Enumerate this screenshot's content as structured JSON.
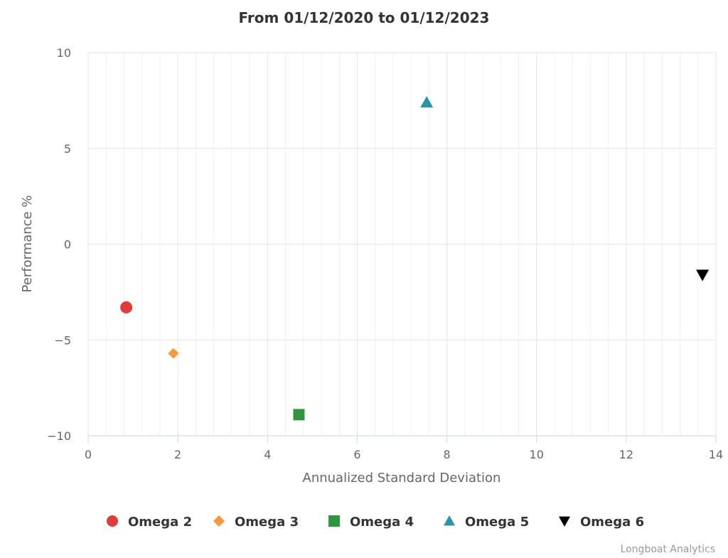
{
  "chart_data": {
    "type": "scatter",
    "title": "From 01/12/2020 to 01/12/2023",
    "xlabel": "Annualized Standard Deviation",
    "ylabel": "Performance %",
    "xlim": [
      0,
      14
    ],
    "ylim": [
      -10,
      10
    ],
    "xticks": [
      0,
      2,
      4,
      6,
      8,
      10,
      12,
      14
    ],
    "yticks": [
      -10,
      -5,
      0,
      5,
      10
    ],
    "ytick_labels": [
      "−10",
      "−5",
      "0",
      "5",
      "10"
    ],
    "grid": true,
    "legend_position": "bottom-center",
    "series": [
      {
        "name": "Omega 2",
        "symbol": "circle",
        "color": "#e03c3c",
        "points": [
          {
            "x": 0.85,
            "y": -3.3
          }
        ]
      },
      {
        "name": "Omega 3",
        "symbol": "diamond",
        "color": "#f89a3c",
        "points": [
          {
            "x": 1.9,
            "y": -5.7
          }
        ]
      },
      {
        "name": "Omega 4",
        "symbol": "square",
        "color": "#2f963f",
        "points": [
          {
            "x": 4.7,
            "y": -8.9
          }
        ]
      },
      {
        "name": "Omega 5",
        "symbol": "triangle",
        "color": "#2a93a8",
        "points": [
          {
            "x": 7.55,
            "y": 7.4
          }
        ]
      },
      {
        "name": "Omega 6",
        "symbol": "triangle-down",
        "color": "#000000",
        "points": [
          {
            "x": 13.7,
            "y": -1.6
          }
        ]
      }
    ]
  },
  "credits": "Longboat Analytics"
}
